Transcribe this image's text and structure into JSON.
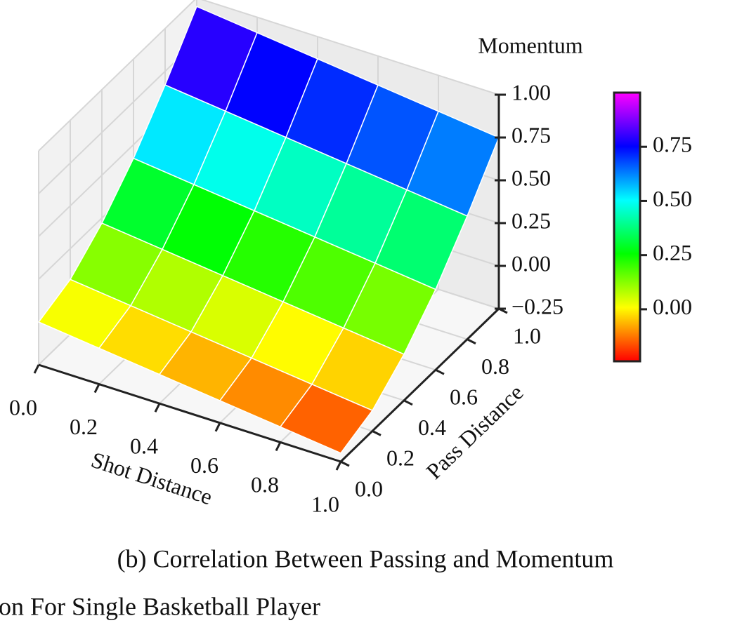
{
  "chart_data": {
    "type": "surface",
    "xlabel": "Shot Distance",
    "ylabel": "Pass Distance",
    "zlabel": "Momentum",
    "x": [
      0,
      0.2,
      0.4,
      0.6,
      0.8,
      1
    ],
    "y": [
      0,
      0.2,
      0.4,
      0.6,
      0.8,
      1
    ],
    "z": [
      [
        0.0,
        -0.04,
        -0.08,
        -0.12,
        -0.16,
        -0.2
      ],
      [
        0.07,
        0.03,
        -0.01,
        -0.05,
        -0.09,
        -0.13
      ],
      [
        0.22,
        0.18,
        0.14,
        0.1,
        0.06,
        0.02
      ],
      [
        0.42,
        0.38,
        0.34,
        0.3,
        0.26,
        0.22
      ],
      [
        0.67,
        0.63,
        0.59,
        0.55,
        0.51,
        0.47
      ],
      [
        0.95,
        0.91,
        0.87,
        0.83,
        0.79,
        0.75
      ]
    ],
    "xlim": [
      0,
      1
    ],
    "ylim": [
      0,
      1
    ],
    "zlim": [
      -0.25,
      1
    ],
    "xticks": [
      {
        "value": 0,
        "label": "0.0"
      },
      0.2,
      0.4,
      0.6,
      0.8,
      {
        "value": 1,
        "label": "1.0"
      }
    ],
    "yticks": [
      {
        "value": 0,
        "label": "0.0"
      },
      0.2,
      0.4,
      0.6,
      0.8,
      {
        "value": 1,
        "label": "1.0"
      }
    ],
    "zticks": [
      {
        "value": -0.25,
        "label": "−0.25"
      },
      {
        "value": 0,
        "label": "0.00"
      },
      0.25,
      {
        "value": 0.5,
        "label": "0.50"
      },
      0.75,
      {
        "value": 1,
        "label": "1.00"
      }
    ],
    "colormap": "gist_rainbow",
    "grid": true,
    "colorbar": {
      "clim": [
        -0.24,
        1.0
      ],
      "ticks": [
        {
          "value": 0,
          "label": "0.00"
        },
        0.25,
        {
          "value": 0.5,
          "label": "0.50"
        },
        0.75
      ]
    }
  },
  "captions": [
    "(b) Correlation Between Passing and Momentum",
    "on For Single Basketball Player"
  ]
}
